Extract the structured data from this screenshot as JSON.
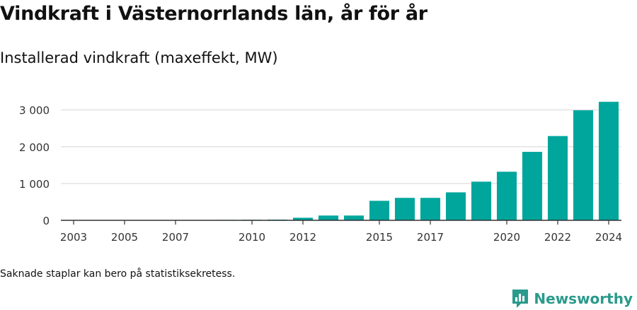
{
  "header": {
    "title": "Vindkraft i Västernorrlands län, år för år",
    "subtitle": "Installerad vindkraft (maxeffekt, MW)"
  },
  "footer": {
    "note": "Saknade staplar kan bero på statistiksekretess.",
    "brand": "Newsworthy"
  },
  "colors": {
    "bar": "#00a69c",
    "grid": "#dddddd",
    "axis": "#333333",
    "brand": "#2a9a8c"
  },
  "icons": {
    "brand_logo": "newsworthy-chart-bubble-icon"
  },
  "chart_data": {
    "type": "bar",
    "title": "Vindkraft i Västernorrlands län, år för år",
    "subtitle": "Installerad vindkraft (maxeffekt, MW)",
    "xlabel": "",
    "ylabel": "",
    "ylim": [
      0,
      3300
    ],
    "yticks": [
      0,
      1000,
      2000,
      3000
    ],
    "ytick_labels": [
      "0",
      "1 000",
      "2 000",
      "3 000"
    ],
    "grid": true,
    "categories": [
      2003,
      2004,
      2005,
      2006,
      2007,
      2008,
      2009,
      2010,
      2011,
      2012,
      2013,
      2014,
      2015,
      2016,
      2017,
      2018,
      2019,
      2020,
      2021,
      2022,
      2023,
      2024
    ],
    "xtick_labels": [
      "2003",
      "2005",
      "2007",
      "2010",
      "2012",
      "2015",
      "2017",
      "2020",
      "2022",
      "2024"
    ],
    "values": [
      2,
      3,
      5,
      6,
      8,
      10,
      12,
      15,
      20,
      70,
      130,
      130,
      530,
      610,
      610,
      760,
      1050,
      1320,
      1860,
      2290,
      2990,
      3220
    ]
  }
}
